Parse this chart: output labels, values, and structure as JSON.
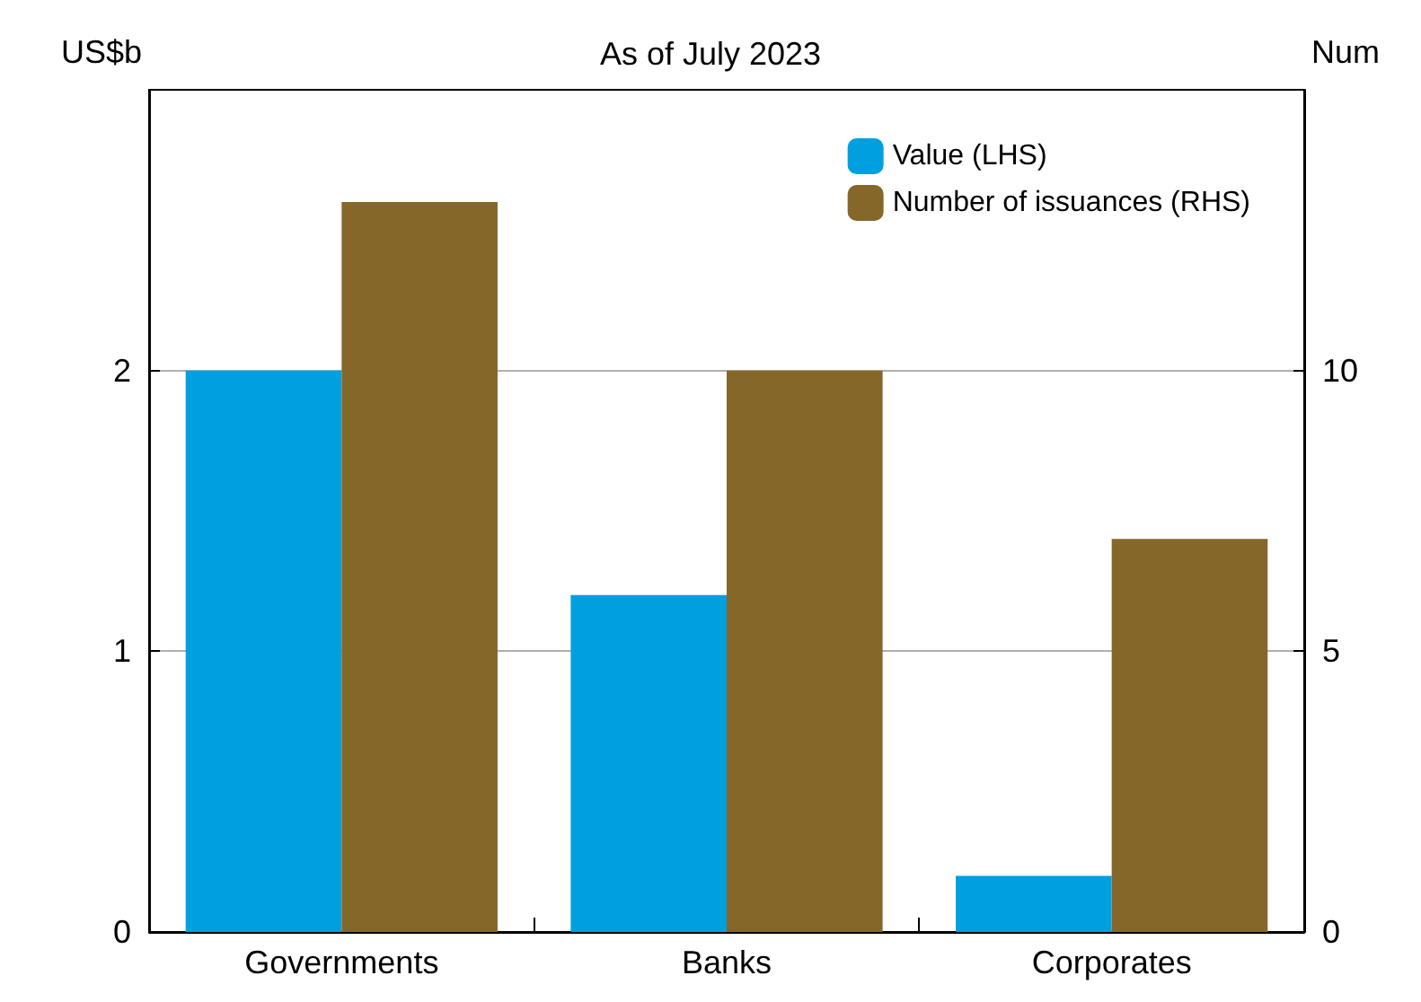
{
  "chart_data": {
    "type": "bar",
    "title": "As of July 2023",
    "ylabel": "US$b",
    "y2label": "Num",
    "categories": [
      "Governments",
      "Banks",
      "Corporates"
    ],
    "series": [
      {
        "name": "Value (LHS)",
        "color": "#00a0e0",
        "values": [
          2.0,
          1.2,
          0.2
        ]
      },
      {
        "name": "Number of issuances (RHS)",
        "color": "#86672a",
        "values": [
          13,
          10,
          7
        ],
        "axis": "y2"
      }
    ],
    "ylim": [
      0,
      3
    ],
    "yticks": [
      0,
      1,
      2
    ],
    "y2lim": [
      0,
      15
    ],
    "y2ticks": [
      0,
      5,
      10
    ],
    "grid": "y",
    "legend": "top right"
  }
}
